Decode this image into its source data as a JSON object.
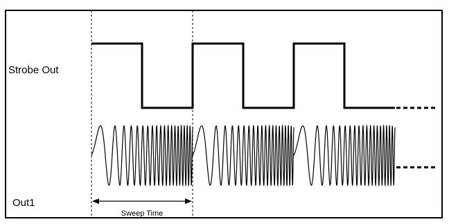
{
  "labels": {
    "strobe_out": "Strobe Out",
    "out1": "Out1",
    "sweep_time": "Sweep Time"
  },
  "colors": {
    "line": "#000000",
    "background": "#ffffff"
  }
}
